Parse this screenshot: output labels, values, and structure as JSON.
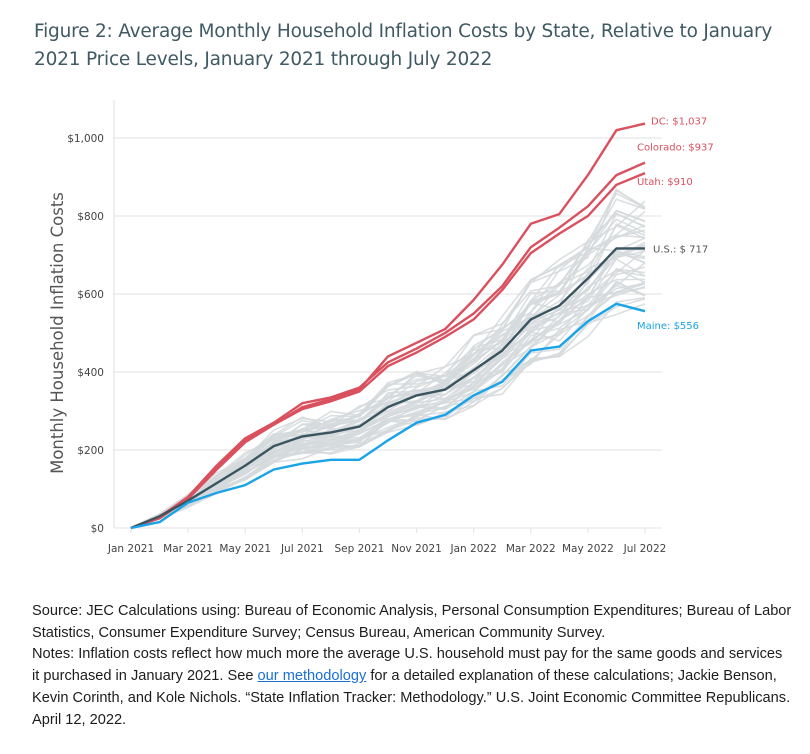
{
  "title": "Figure 2: Average Monthly Household Inflation Costs by State, Relative to January 2021 Price Levels, January 2021 through July 2022",
  "notes": {
    "source": "Source: JEC Calculations using: Bureau of Economic Analysis, Personal Consumption Expenditures; Bureau of Labor Statistics, Consumer Expenditure Survey; Census Bureau, American Community Survey.",
    "notes_prefix": "Notes: Inflation costs reflect how much more the average U.S. household must pay for the same goods and services it purchased in January 2021. See ",
    "link_text": "our methodology",
    "notes_suffix": " for a detailed explanation of these calculations; Jackie Benson, Kevin Corinth, and Kole Nichols. “State Inflation Tracker: Methodology.” U.S. Joint Economic Committee Republicans. April 12, 2022."
  },
  "colors": {
    "highlight_red": "#d9505e",
    "us": "#3b5560",
    "maine": "#1aa3e6",
    "other_states": "#d5d9dc",
    "grid": "#e6e6e6",
    "title": "#3f5a63"
  },
  "chart_data": {
    "type": "line",
    "title": "Figure 2: Average Monthly Household Inflation Costs by State, Relative to January 2021 Price Levels, January 2021 through July 2022",
    "xlabel": "",
    "ylabel": "Monthly Household Inflation Costs",
    "ylim": [
      0,
      1000
    ],
    "yticks": [
      0,
      200,
      400,
      600,
      800,
      1000
    ],
    "ytick_labels": [
      "$0",
      "$200",
      "$400",
      "$600",
      "$800",
      "$1,000"
    ],
    "grid": "horizontal",
    "x": [
      "Jan 2021",
      "Feb 2021",
      "Mar 2021",
      "Apr 2021",
      "May 2021",
      "Jun 2021",
      "Jul 2021",
      "Aug 2021",
      "Sep 2021",
      "Oct 2021",
      "Nov 2021",
      "Dec 2021",
      "Jan 2022",
      "Feb 2022",
      "Mar 2022",
      "Apr 2022",
      "May 2022",
      "Jun 2022",
      "Jul 2022"
    ],
    "xtick_labels": [
      "Jan 2021",
      "Mar 2021",
      "May 2021",
      "Jul 2021",
      "Sep 2021",
      "Nov 2021",
      "Jan 2022",
      "Mar 2022",
      "May 2022",
      "Jul 2022"
    ],
    "highlighted_series": [
      {
        "name": "DC",
        "label": "DC: $1,037",
        "color": "#d9505e",
        "values": [
          0,
          30,
          75,
          155,
          225,
          265,
          310,
          330,
          355,
          440,
          475,
          510,
          585,
          675,
          780,
          805,
          905,
          1020,
          1037
        ]
      },
      {
        "name": "Colorado",
        "label": "Colorado: $937",
        "color": "#d9505e",
        "values": [
          0,
          28,
          80,
          160,
          230,
          270,
          320,
          335,
          360,
          425,
          460,
          500,
          550,
          620,
          720,
          770,
          825,
          905,
          937
        ]
      },
      {
        "name": "Utah",
        "label": "Utah: $910",
        "color": "#d9505e",
        "values": [
          0,
          25,
          75,
          150,
          220,
          265,
          305,
          325,
          350,
          415,
          450,
          490,
          535,
          610,
          705,
          755,
          800,
          880,
          910
        ]
      },
      {
        "name": "U.S.",
        "label": "U.S.: $ 717",
        "color": "#3b5560",
        "values": [
          0,
          30,
          70,
          115,
          160,
          210,
          235,
          245,
          260,
          310,
          340,
          355,
          405,
          455,
          535,
          570,
          640,
          717,
          717
        ]
      },
      {
        "name": "Maine",
        "label": "Maine: $556",
        "color": "#1aa3e6",
        "values": [
          0,
          15,
          65,
          90,
          110,
          150,
          165,
          175,
          175,
          225,
          270,
          290,
          340,
          375,
          455,
          465,
          530,
          575,
          556
        ]
      }
    ],
    "other_states_note": "Remaining states shown as unlabeled light-gray lines, ending roughly between $575 and $830 in July 2022",
    "other_states_end_range": [
      575,
      830
    ],
    "legend": "none (direct labels at right end of lines)"
  }
}
